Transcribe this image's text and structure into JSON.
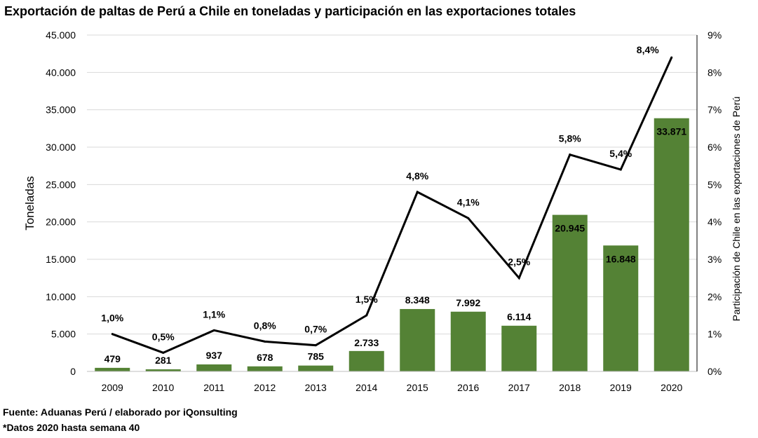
{
  "chart_data": {
    "type": "bar",
    "title": "Exportación de paltas de Perú a Chile en toneladas y participación en las exportaciones totales",
    "categories": [
      "2009",
      "2010",
      "2011",
      "2012",
      "2013",
      "2014",
      "2015",
      "2016",
      "2017",
      "2018",
      "2019",
      "2020"
    ],
    "series": [
      {
        "name": "Toneladas",
        "type": "bar",
        "axis": "left",
        "color": "#548235",
        "values": [
          479,
          281,
          937,
          678,
          785,
          2733,
          8348,
          7992,
          6114,
          20945,
          16848,
          33871
        ],
        "labels": [
          "479",
          "281",
          "937",
          "678",
          "785",
          "2.733",
          "8.348",
          "7.992",
          "6.114",
          "20.945",
          "16.848",
          "33.871"
        ]
      },
      {
        "name": "Participación de Chile en las exportaciones de Perú",
        "type": "line",
        "axis": "right",
        "color": "#000000",
        "values": [
          1.0,
          0.5,
          1.1,
          0.8,
          0.7,
          1.5,
          4.8,
          4.1,
          2.5,
          5.8,
          5.4,
          8.4
        ],
        "labels": [
          "1,0%",
          "0,5%",
          "1,1%",
          "0,8%",
          "0,7%",
          "1,5%",
          "4,8%",
          "4,1%",
          "2,5%",
          "5,8%",
          "5,4%",
          "8,4%"
        ]
      }
    ],
    "ylabel": "Toneladas",
    "y2label": "Participación de Chile en las exportaciones de Perú",
    "ylim": [
      0,
      45000
    ],
    "y2lim": [
      0,
      9
    ],
    "yticks": [
      0,
      5000,
      10000,
      15000,
      20000,
      25000,
      30000,
      35000,
      40000,
      45000
    ],
    "ytick_labels": [
      "0",
      "5.000",
      "10.000",
      "15.000",
      "20.000",
      "25.000",
      "30.000",
      "35.000",
      "40.000",
      "45.000"
    ],
    "y2ticks": [
      0,
      1,
      2,
      3,
      4,
      5,
      6,
      7,
      8,
      9
    ],
    "y2tick_labels": [
      "0%",
      "1%",
      "2%",
      "3%",
      "4%",
      "5%",
      "6%",
      "7%",
      "8%",
      "9%"
    ],
    "grid": true,
    "legend": "none"
  },
  "footer": {
    "source": "Fuente: Aduanas Perú / elaborado por iQonsulting",
    "note": "*Datos 2020 hasta semana 40"
  }
}
